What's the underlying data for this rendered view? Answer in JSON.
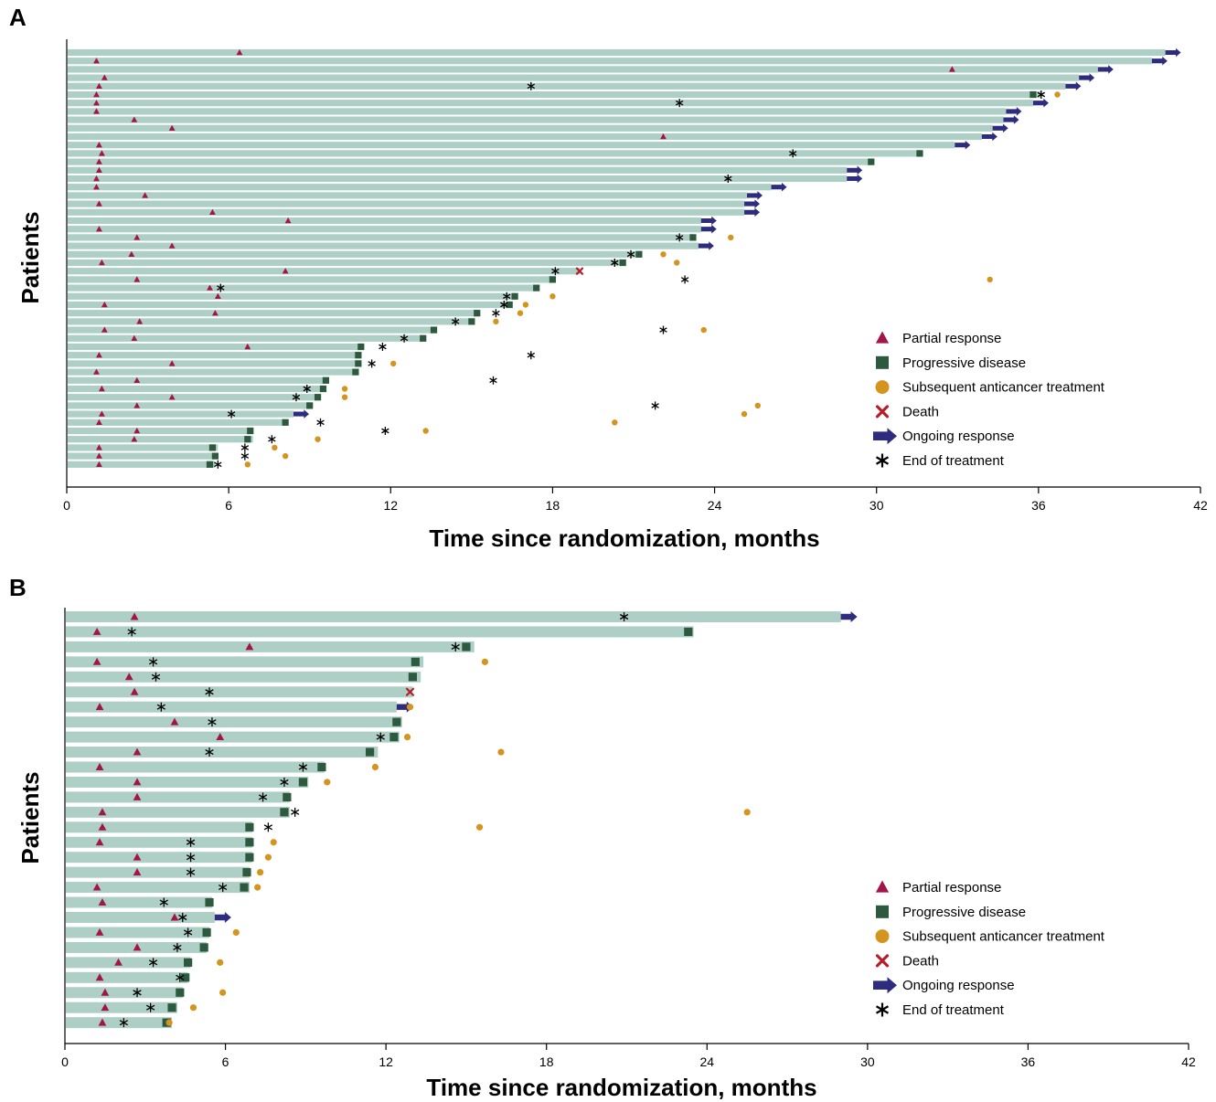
{
  "colors": {
    "bar": "#aecfc5",
    "partial_response": "#a3154a",
    "progressive_disease": "#2d5a3f",
    "subsequent_treatment": "#d4951f",
    "death": "#b3202a",
    "ongoing_response": "#2e2c7e",
    "end_of_treatment": "#000000"
  },
  "legend": [
    {
      "key": "pr",
      "label": "Partial response",
      "icon": "triangle-icon"
    },
    {
      "key": "pd",
      "label": "Progressive disease",
      "icon": "square-icon"
    },
    {
      "key": "st",
      "label": "Subsequent anticancer treatment",
      "icon": "circle-icon"
    },
    {
      "key": "death",
      "label": "Death",
      "icon": "x-mark-icon"
    },
    {
      "key": "ongoing",
      "label": "Ongoing response",
      "icon": "arrow-right-icon"
    },
    {
      "key": "eot",
      "label": "End of treatment",
      "icon": "asterisk-icon"
    }
  ],
  "chart_data": [
    {
      "type": "swimmer",
      "panel": "A",
      "xlabel": "Time since randomization, months",
      "ylabel": "Patients",
      "xlim": [
        0,
        42
      ],
      "xticks": [
        0,
        6,
        12,
        18,
        24,
        30,
        36,
        42
      ],
      "legend_position": "bottom-right",
      "patients": [
        {
          "end": 40.7,
          "pr": 6.4,
          "ongoing": true
        },
        {
          "end": 40.2,
          "pr": 1.1,
          "ongoing": true
        },
        {
          "end": 38.2,
          "pr": 32.8,
          "ongoing": true
        },
        {
          "end": 37.5,
          "pr": 1.4,
          "ongoing": true
        },
        {
          "end": 37.0,
          "pr": 1.2,
          "eot": 17.2,
          "ongoing": true
        },
        {
          "end": 36.1,
          "pr": 1.1,
          "pd": 35.8,
          "eot": 36.1,
          "st": 36.7
        },
        {
          "end": 35.8,
          "pr": 1.1,
          "eot": 22.7,
          "ongoing": true
        },
        {
          "end": 34.8,
          "pr": 1.1,
          "ongoing": true
        },
        {
          "end": 34.7,
          "pr": 2.5,
          "ongoing": true
        },
        {
          "end": 34.3,
          "pr": 3.9,
          "ongoing": true
        },
        {
          "end": 33.9,
          "pr": 22.1,
          "ongoing": true
        },
        {
          "end": 32.9,
          "pr": 1.2,
          "ongoing": true
        },
        {
          "end": 31.6,
          "pr": 1.3,
          "pd": 31.6,
          "eot": 26.9
        },
        {
          "end": 29.8,
          "pr": 1.2,
          "pd": 29.8
        },
        {
          "end": 28.9,
          "pr": 1.2,
          "ongoing": true
        },
        {
          "end": 28.9,
          "pr": 1.1,
          "eot": 24.5,
          "ongoing": true
        },
        {
          "end": 26.1,
          "pr": 1.1,
          "ongoing": true
        },
        {
          "end": 25.2,
          "pr": 2.9,
          "ongoing": true
        },
        {
          "end": 25.1,
          "pr": 1.2,
          "ongoing": true
        },
        {
          "end": 25.1,
          "pr": 5.4,
          "ongoing": true
        },
        {
          "end": 23.5,
          "pr": 8.2,
          "ongoing": true
        },
        {
          "end": 23.5,
          "pr": 1.2,
          "ongoing": true
        },
        {
          "end": 23.2,
          "pr": 2.6,
          "pd": 23.2,
          "eot": 22.7,
          "st": 24.6
        },
        {
          "end": 23.4,
          "pr": 3.9,
          "ongoing": true
        },
        {
          "end": 21.3,
          "pr": 2.4,
          "pd": 21.2,
          "eot": 20.9,
          "st": 22.1
        },
        {
          "end": 20.6,
          "pr": 1.3,
          "pd": 20.6,
          "eot": 20.3,
          "st": 22.6
        },
        {
          "end": 19.0,
          "pr": 8.1,
          "death": 19.0,
          "eot": 18.1
        },
        {
          "end": 18.0,
          "pr": 2.6,
          "pd": 18.0,
          "eot": 22.9,
          "st": 34.2
        },
        {
          "end": 17.4,
          "pr": 5.3,
          "pd": 17.4,
          "eot": 5.7
        },
        {
          "end": 16.6,
          "pr": 5.6,
          "pd": 16.6,
          "eot": 16.3,
          "st": 18.0
        },
        {
          "end": 16.4,
          "pr": 1.4,
          "pd": 16.4,
          "eot": 16.2,
          "st": 17.0
        },
        {
          "end": 15.2,
          "pr": 5.5,
          "pd": 15.2,
          "eot": 15.9,
          "st": 16.8
        },
        {
          "end": 15.0,
          "pr": 2.7,
          "pd": 15.0,
          "eot": 14.4,
          "st": 15.9
        },
        {
          "end": 13.6,
          "pr": 1.4,
          "pd": 13.6,
          "eot": 22.1,
          "st": 23.6
        },
        {
          "end": 13.2,
          "pr": 2.5,
          "pd": 13.2,
          "eot": 12.5
        },
        {
          "end": 11.0,
          "pr": 6.7,
          "pd": 10.9,
          "eot": 11.7
        },
        {
          "end": 10.9,
          "pr": 1.2,
          "pd": 10.8,
          "eot": 17.2
        },
        {
          "end": 10.9,
          "pr": 3.9,
          "pd": 10.8,
          "eot": 11.3,
          "st": 12.1
        },
        {
          "end": 10.8,
          "pr": 1.1,
          "pd": 10.7
        },
        {
          "end": 9.7,
          "pr": 2.6,
          "pd": 9.6,
          "eot": 15.8
        },
        {
          "end": 9.6,
          "pr": 1.3,
          "pd": 9.5,
          "eot": 8.9,
          "st": 10.3
        },
        {
          "end": 9.4,
          "pr": 3.9,
          "pd": 9.3,
          "eot": 8.5,
          "st": 10.3
        },
        {
          "end": 9.0,
          "pr": 2.6,
          "pd": 9.0,
          "eot": 21.8,
          "st": 25.6
        },
        {
          "end": 8.4,
          "pr": 1.3,
          "eot": 6.1,
          "st": 25.1,
          "ongoing": true
        },
        {
          "end": 8.1,
          "pr": 1.2,
          "pd": 8.1,
          "eot": 9.4,
          "st": 20.3
        },
        {
          "end": 6.9,
          "pr": 2.6,
          "pd": 6.8,
          "eot": 11.8,
          "st": 13.3
        },
        {
          "end": 6.9,
          "pr": 2.5,
          "pd": 6.7,
          "eot": 7.6,
          "st": 9.3
        },
        {
          "end": 5.6,
          "pr": 1.2,
          "pd": 5.4,
          "eot": 6.6,
          "st": 7.7
        },
        {
          "end": 5.6,
          "pr": 1.2,
          "pd": 5.5,
          "eot": 6.6,
          "st": 8.1
        },
        {
          "end": 5.5,
          "pr": 1.2,
          "pd": 5.3,
          "eot": 5.6,
          "st": 6.7
        }
      ]
    },
    {
      "type": "swimmer",
      "panel": "B",
      "xlabel": "Time since randomization, months",
      "ylabel": "Patients",
      "xlim": [
        0,
        42
      ],
      "xticks": [
        0,
        6,
        12,
        18,
        24,
        30,
        36,
        42
      ],
      "legend_position": "bottom-right",
      "patients": [
        {
          "end": 29.0,
          "pr": 2.6,
          "eot": 20.9,
          "ongoing": true
        },
        {
          "end": 23.5,
          "pr": 1.2,
          "pd": 23.3,
          "eot": 2.5
        },
        {
          "end": 15.3,
          "pr": 6.9,
          "pd": 15.0,
          "eot": 14.6
        },
        {
          "end": 13.4,
          "pr": 1.2,
          "pd": 13.1,
          "eot": 3.3,
          "st": 15.7
        },
        {
          "end": 13.3,
          "pr": 2.4,
          "pd": 13.0,
          "eot": 3.4
        },
        {
          "end": 13.0,
          "pr": 2.6,
          "death": 12.9,
          "eot": 5.4
        },
        {
          "end": 12.4,
          "pr": 1.3,
          "st": 12.9,
          "eot": 3.6,
          "ongoing": true
        },
        {
          "end": 12.6,
          "pr": 4.1,
          "pd": 12.4,
          "eot": 5.5
        },
        {
          "end": 12.5,
          "pr": 5.8,
          "pd": 12.3,
          "eot": 11.8,
          "st": 12.8
        },
        {
          "end": 11.7,
          "pr": 2.7,
          "pd": 11.4,
          "eot": 5.4,
          "st": 16.3
        },
        {
          "end": 9.7,
          "pr": 1.3,
          "pd": 9.6,
          "eot": 8.9,
          "st": 11.6
        },
        {
          "end": 9.1,
          "pr": 2.7,
          "pd": 8.9,
          "eot": 8.2,
          "st": 9.8
        },
        {
          "end": 8.4,
          "pr": 2.7,
          "pd": 8.3,
          "eot": 7.4
        },
        {
          "end": 8.4,
          "pr": 1.4,
          "pd": 8.2,
          "eot": 8.6,
          "st": 25.5
        },
        {
          "end": 7.0,
          "pr": 1.4,
          "pd": 6.9,
          "eot": 7.6,
          "st": 15.5
        },
        {
          "end": 7.0,
          "pr": 1.3,
          "pd": 6.9,
          "eot": 4.7,
          "st": 7.8
        },
        {
          "end": 7.0,
          "pr": 2.7,
          "pd": 6.9,
          "eot": 4.7,
          "st": 7.6
        },
        {
          "end": 6.9,
          "pr": 2.7,
          "pd": 6.8,
          "eot": 4.7,
          "st": 7.3
        },
        {
          "end": 6.9,
          "pr": 1.2,
          "pd": 6.7,
          "eot": 5.9,
          "st": 7.2
        },
        {
          "end": 5.5,
          "pr": 1.4,
          "pd": 5.4,
          "eot": 3.7
        },
        {
          "end": 5.6,
          "pr": 4.1,
          "eot": 4.4,
          "ongoing": true
        },
        {
          "end": 5.4,
          "pr": 1.3,
          "pd": 5.3,
          "eot": 4.6,
          "st": 6.4
        },
        {
          "end": 5.3,
          "pr": 2.7,
          "pd": 5.2,
          "eot": 4.2
        },
        {
          "end": 4.7,
          "pr": 2.0,
          "pd": 4.6,
          "eot": 3.3,
          "st": 5.8
        },
        {
          "end": 4.6,
          "pr": 1.3,
          "pd": 4.5,
          "eot": 4.3
        },
        {
          "end": 4.4,
          "pr": 1.5,
          "pd": 4.3,
          "eot": 2.7,
          "st": 5.9
        },
        {
          "end": 4.2,
          "pr": 1.5,
          "pd": 4.0,
          "eot": 3.2,
          "st": 4.8
        },
        {
          "end": 4.0,
          "pr": 1.4,
          "pd": 3.8,
          "eot": 2.2,
          "st": 3.9
        }
      ]
    }
  ]
}
